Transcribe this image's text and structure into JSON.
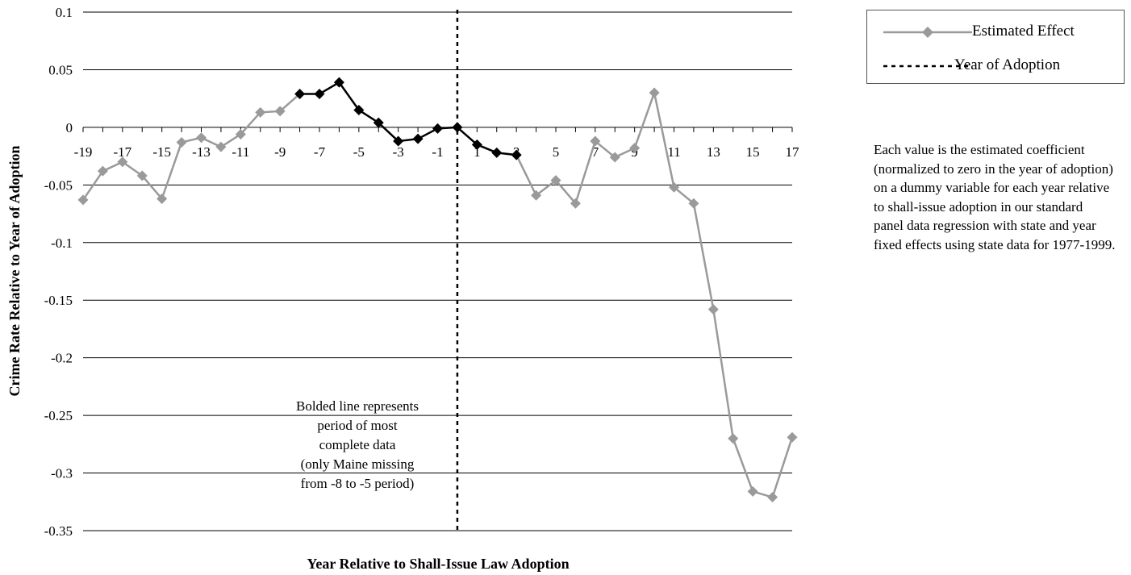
{
  "chart_data": {
    "type": "line",
    "xlabel": "Year Relative to Shall-Issue Law Adoption",
    "ylabel": "Crime Rate Relative to Year of Adoption",
    "ylim": [
      -0.35,
      0.1
    ],
    "xlim": [
      -19,
      17
    ],
    "y_ticks": [
      "0.1",
      "0.05",
      "0",
      "-0.05",
      "-0.1",
      "-0.15",
      "-0.2",
      "-0.25",
      "-0.3",
      "-0.35"
    ],
    "x_ticks": [
      "-19",
      "-17",
      "-15",
      "-13",
      "-11",
      "-9",
      "-7",
      "-5",
      "-3",
      "-1",
      "1",
      "3",
      "5",
      "7",
      "9",
      "11",
      "13",
      "15",
      "17"
    ],
    "grid": "horizontal",
    "legend_position": "top-right",
    "series": [
      {
        "name": "Estimated Effect",
        "color": "#9a9a9a",
        "bold_color": "#000000",
        "bold_range": [
          -8,
          3
        ],
        "x": [
          -19,
          -18,
          -17,
          -16,
          -15,
          -14,
          -13,
          -12,
          -11,
          -10,
          -9,
          -8,
          -7,
          -6,
          -5,
          -4,
          -3,
          -2,
          -1,
          0,
          1,
          2,
          3,
          4,
          5,
          6,
          7,
          8,
          9,
          10,
          11,
          12,
          13,
          14,
          15,
          16,
          17
        ],
        "values": [
          -0.063,
          -0.038,
          -0.03,
          -0.042,
          -0.062,
          -0.013,
          -0.009,
          -0.017,
          -0.006,
          0.013,
          0.014,
          0.029,
          0.029,
          0.039,
          0.015,
          0.004,
          -0.012,
          -0.01,
          -0.001,
          0.0,
          -0.015,
          -0.022,
          -0.024,
          -0.059,
          -0.046,
          -0.066,
          -0.012,
          -0.026,
          -0.018,
          0.03,
          -0.052,
          -0.066,
          -0.158,
          -0.27,
          -0.316,
          -0.321,
          -0.269
        ]
      },
      {
        "name": "Year of Adoption",
        "x_value": 0,
        "style": "dashed",
        "color": "#000000"
      }
    ],
    "annotation": [
      "Bolded line represents",
      "period of most",
      "complete data",
      "(only Maine missing",
      "from -8 to -5 period)"
    ]
  },
  "note": "Each value is the estimated coefficient (normalized to zero in the year of adoption) on a dummy variable for each year relative to shall-issue adoption in our standard panel data regression with state and year fixed effects using state data for 1977-1999."
}
